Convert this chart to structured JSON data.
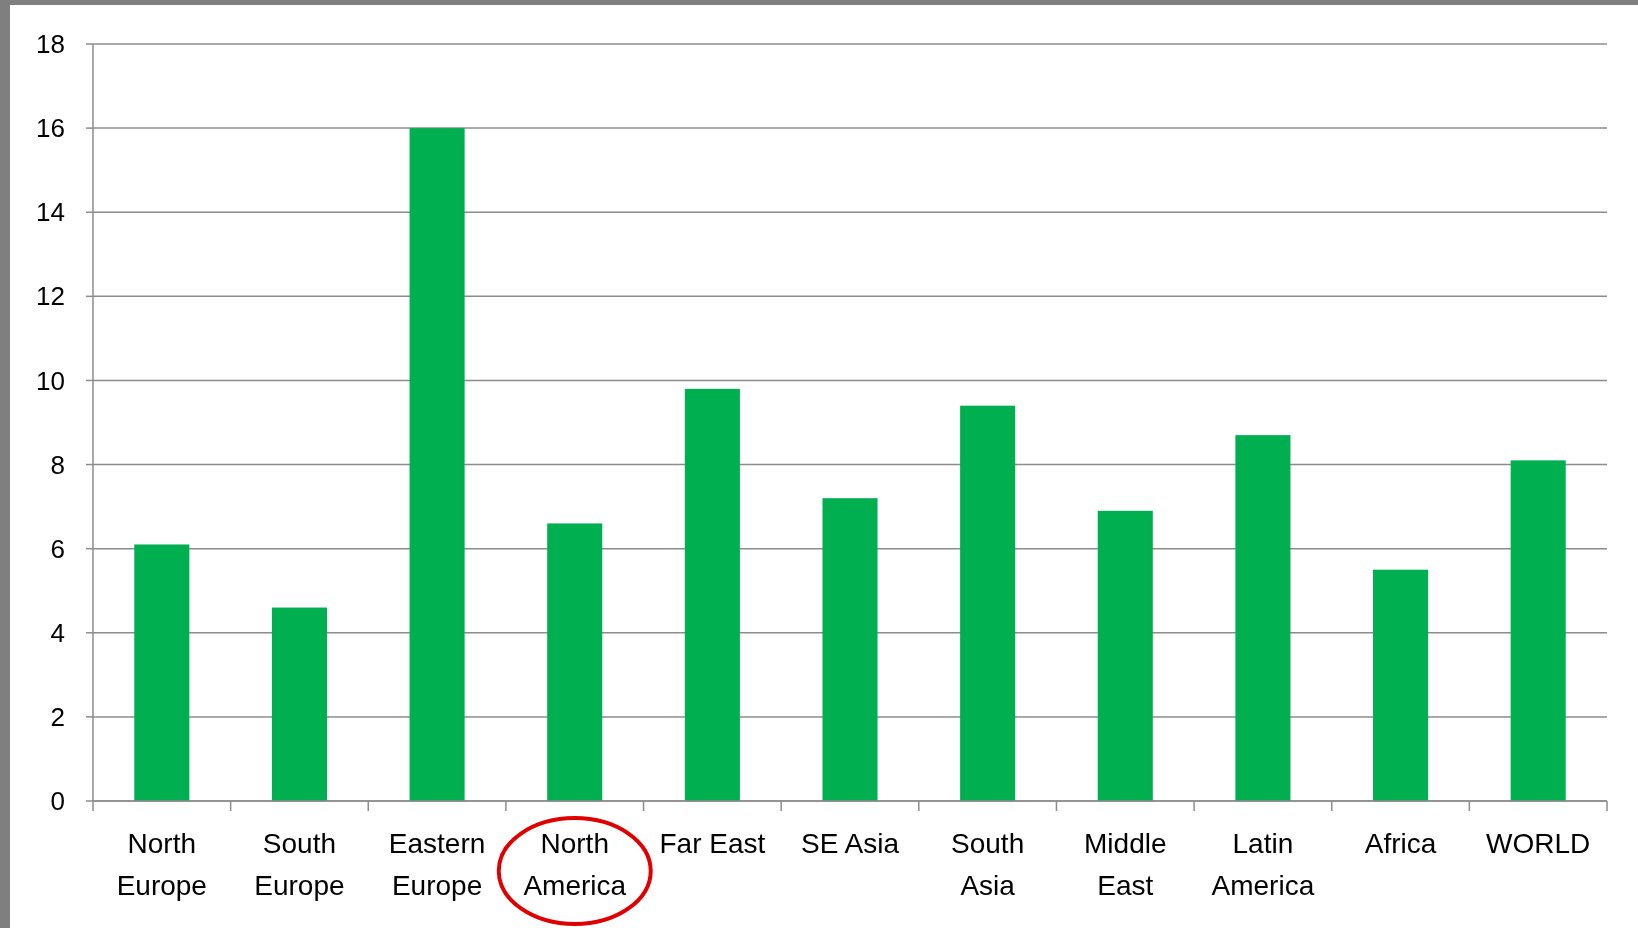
{
  "chart_data": {
    "type": "bar",
    "categories": [
      "North Europe",
      "South Europe",
      "Eastern Europe",
      "North America",
      "Far East",
      "SE Asia",
      "South Asia",
      "Middle East",
      "Latin America",
      "Africa",
      "WORLD"
    ],
    "values": [
      6.1,
      4.6,
      16.0,
      6.6,
      9.8,
      7.2,
      9.4,
      6.9,
      8.7,
      5.5,
      8.1
    ],
    "color": "#00b050",
    "ylim": [
      0,
      18
    ],
    "yticks": [
      0,
      2,
      4,
      6,
      8,
      10,
      12,
      14,
      16,
      18
    ],
    "grid": "y"
  }
}
